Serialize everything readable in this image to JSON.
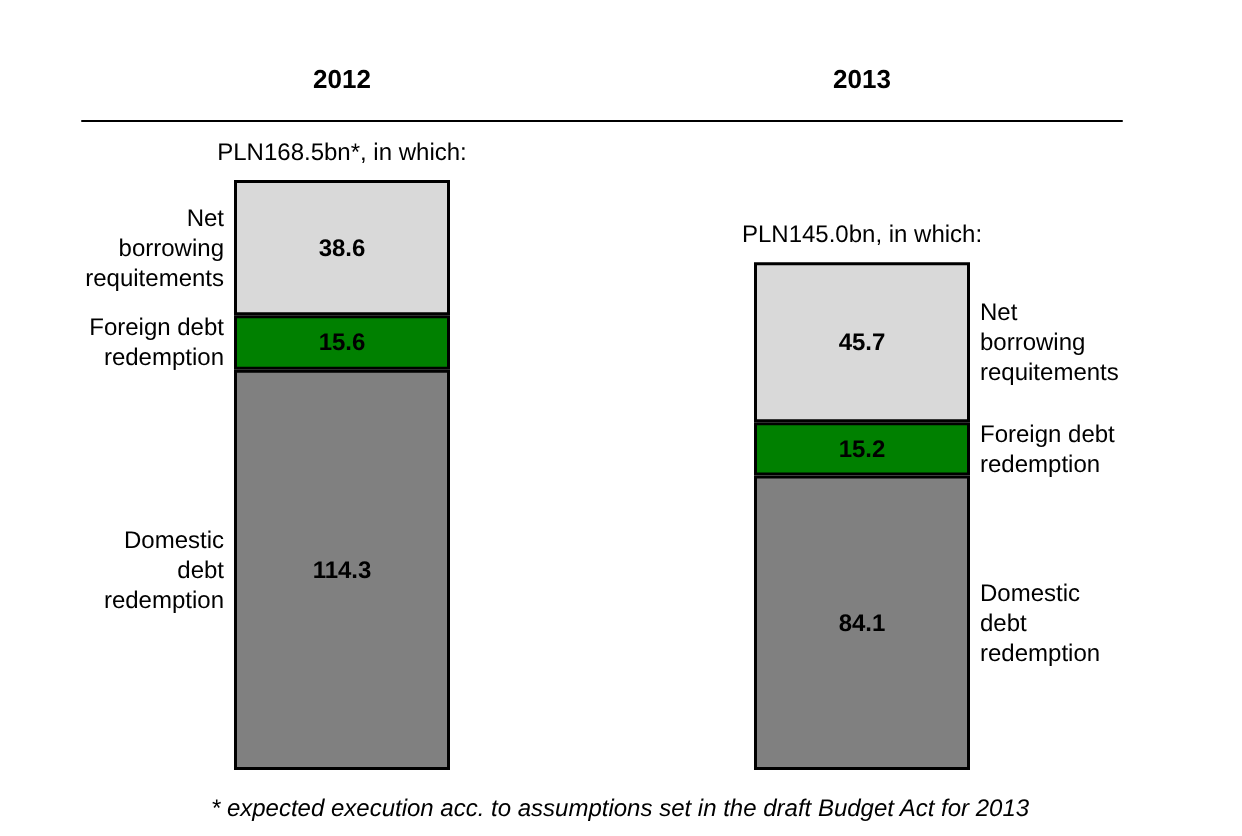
{
  "chart_data": {
    "type": "bar",
    "stacked": true,
    "data_labels": true,
    "categories": [
      "2012",
      "2013"
    ],
    "series": [
      {
        "name": "Domestic debt redemption",
        "color": "#808080",
        "values": [
          114.3,
          84.1
        ]
      },
      {
        "name": "Foreign debt redemption",
        "color": "#008000",
        "values": [
          15.6,
          15.2
        ]
      },
      {
        "name": "Net borrowing requitements",
        "color": "#d9d9d9",
        "values": [
          38.6,
          45.7
        ]
      }
    ],
    "annotations": [
      {
        "text": "PLN168.5bn*, in which:",
        "x": "2012",
        "y": 168.5
      },
      {
        "text": "PLN145.0bn, in which:",
        "x": "2013",
        "y": 145.0
      },
      "* expected execution acc. to assumptions set in the draft Budget Act for 2013"
    ]
  }
}
